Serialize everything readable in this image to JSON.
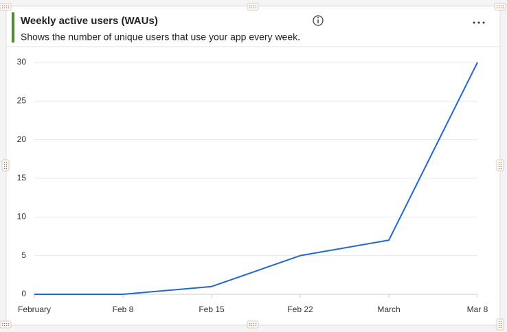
{
  "chart_data": {
    "type": "line",
    "title": "Weekly active users (WAUs)",
    "subtitle": "Shows the number of unique users that use your app every week.",
    "categories": [
      "February",
      "Feb 8",
      "Feb 15",
      "Feb 22",
      "March",
      "Mar 8"
    ],
    "values": [
      0,
      0,
      1,
      5,
      7,
      30
    ],
    "color": "#1a66e8",
    "ylim": [
      0,
      30
    ],
    "yticks": [
      0,
      5,
      10,
      15,
      20,
      25,
      30
    ],
    "grid": true
  }
}
